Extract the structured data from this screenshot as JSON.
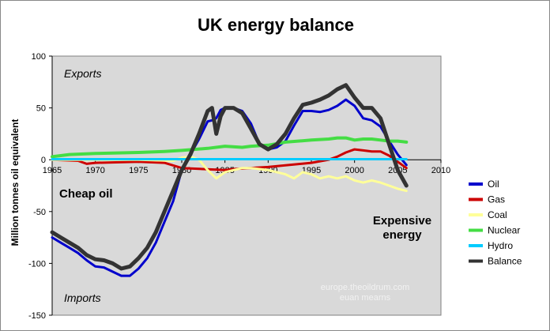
{
  "chart_data": {
    "type": "line",
    "title": "UK energy balance",
    "ylabel": "Million tonnes oil equivalent",
    "xlabel": "",
    "xlim": [
      1965,
      2010
    ],
    "ylim": [
      -150,
      100
    ],
    "x_ticks": [
      "1965",
      "1970",
      "1975",
      "1980",
      "1985",
      "1990",
      "1995",
      "2000",
      "2005",
      "2010"
    ],
    "y_ticks": [
      "100",
      "50",
      "0",
      "-50",
      "-100",
      "-150"
    ],
    "grid": false,
    "legend_position": "right",
    "series": [
      {
        "name": "Oil",
        "color": "#0000cc",
        "width": 3,
        "points": [
          [
            1965,
            -75
          ],
          [
            1966,
            -80
          ],
          [
            1967,
            -85
          ],
          [
            1968,
            -90
          ],
          [
            1969,
            -97
          ],
          [
            1970,
            -103
          ],
          [
            1971,
            -104
          ],
          [
            1972,
            -108
          ],
          [
            1973,
            -112
          ],
          [
            1974,
            -112
          ],
          [
            1975,
            -105
          ],
          [
            1976,
            -95
          ],
          [
            1977,
            -80
          ],
          [
            1978,
            -60
          ],
          [
            1979,
            -40
          ],
          [
            1980,
            -10
          ],
          [
            1981,
            5
          ],
          [
            1982,
            20
          ],
          [
            1983,
            37
          ],
          [
            1983.5,
            38
          ],
          [
            1984,
            40
          ],
          [
            1984.5,
            48
          ],
          [
            1985,
            50
          ],
          [
            1986,
            50
          ],
          [
            1987,
            47
          ],
          [
            1988,
            35
          ],
          [
            1989,
            15
          ],
          [
            1990,
            10
          ],
          [
            1991,
            12
          ],
          [
            1992,
            18
          ],
          [
            1993,
            33
          ],
          [
            1994,
            47
          ],
          [
            1995,
            47
          ],
          [
            1996,
            46
          ],
          [
            1997,
            48
          ],
          [
            1998,
            52
          ],
          [
            1999,
            58
          ],
          [
            2000,
            52
          ],
          [
            2001,
            40
          ],
          [
            2002,
            38
          ],
          [
            2003,
            32
          ],
          [
            2004,
            18
          ],
          [
            2005,
            5
          ],
          [
            2006,
            -5
          ]
        ]
      },
      {
        "name": "Gas",
        "color": "#cc0000",
        "width": 3,
        "points": [
          [
            1965,
            0
          ],
          [
            1968,
            -1
          ],
          [
            1969,
            -4
          ],
          [
            1970,
            -3
          ],
          [
            1975,
            -2
          ],
          [
            1978,
            -3
          ],
          [
            1980,
            -8
          ],
          [
            1985,
            -10
          ],
          [
            1986,
            -9
          ],
          [
            1990,
            -7
          ],
          [
            1995,
            -3
          ],
          [
            1997,
            0
          ],
          [
            1998,
            3
          ],
          [
            1999,
            7
          ],
          [
            2000,
            10
          ],
          [
            2001,
            9
          ],
          [
            2002,
            8
          ],
          [
            2003,
            8
          ],
          [
            2004,
            4
          ],
          [
            2005,
            -2
          ],
          [
            2006,
            -8
          ]
        ]
      },
      {
        "name": "Coal",
        "color": "#ffff99",
        "width": 3,
        "points": [
          [
            1965,
            0
          ],
          [
            1970,
            0
          ],
          [
            1975,
            0
          ],
          [
            1979,
            -1
          ],
          [
            1980,
            2
          ],
          [
            1981,
            3
          ],
          [
            1982,
            0
          ],
          [
            1983,
            -10
          ],
          [
            1984,
            -18
          ],
          [
            1985,
            -12
          ],
          [
            1986,
            -10
          ],
          [
            1987,
            -8
          ],
          [
            1988,
            -8
          ],
          [
            1989,
            -9
          ],
          [
            1990,
            -10
          ],
          [
            1991,
            -12
          ],
          [
            1992,
            -14
          ],
          [
            1993,
            -18
          ],
          [
            1994,
            -12
          ],
          [
            1995,
            -14
          ],
          [
            1996,
            -18
          ],
          [
            1997,
            -16
          ],
          [
            1998,
            -18
          ],
          [
            1999,
            -16
          ],
          [
            2000,
            -20
          ],
          [
            2001,
            -22
          ],
          [
            2002,
            -20
          ],
          [
            2003,
            -22
          ],
          [
            2004,
            -25
          ],
          [
            2005,
            -28
          ],
          [
            2006,
            -30
          ]
        ]
      },
      {
        "name": "Nuclear",
        "color": "#44dd44",
        "width": 4,
        "points": [
          [
            1965,
            3
          ],
          [
            1966,
            4
          ],
          [
            1967,
            5
          ],
          [
            1970,
            6
          ],
          [
            1975,
            7
          ],
          [
            1978,
            8
          ],
          [
            1980,
            9
          ],
          [
            1983,
            11
          ],
          [
            1985,
            13
          ],
          [
            1987,
            12
          ],
          [
            1988,
            13
          ],
          [
            1990,
            14
          ],
          [
            1992,
            17
          ],
          [
            1995,
            19
          ],
          [
            1997,
            20
          ],
          [
            1998,
            21
          ],
          [
            1999,
            21
          ],
          [
            2000,
            19
          ],
          [
            2001,
            20
          ],
          [
            2002,
            20
          ],
          [
            2003,
            19
          ],
          [
            2004,
            18
          ],
          [
            2005,
            18
          ],
          [
            2006,
            17
          ]
        ]
      },
      {
        "name": "Hydro",
        "color": "#00ccff",
        "width": 3,
        "points": [
          [
            1965,
            0.5
          ],
          [
            2006,
            0.5
          ]
        ]
      },
      {
        "name": "Balance",
        "color": "#333333",
        "width": 5,
        "points": [
          [
            1965,
            -70
          ],
          [
            1966,
            -75
          ],
          [
            1967,
            -80
          ],
          [
            1968,
            -85
          ],
          [
            1969,
            -92
          ],
          [
            1970,
            -96
          ],
          [
            1971,
            -97
          ],
          [
            1972,
            -100
          ],
          [
            1973,
            -105
          ],
          [
            1974,
            -103
          ],
          [
            1975,
            -95
          ],
          [
            1976,
            -85
          ],
          [
            1977,
            -70
          ],
          [
            1978,
            -50
          ],
          [
            1979,
            -30
          ],
          [
            1980,
            -10
          ],
          [
            1981,
            5
          ],
          [
            1982,
            25
          ],
          [
            1983,
            47
          ],
          [
            1983.5,
            50
          ],
          [
            1984,
            25
          ],
          [
            1984.5,
            42
          ],
          [
            1985,
            50
          ],
          [
            1986,
            50
          ],
          [
            1987,
            45
          ],
          [
            1988,
            30
          ],
          [
            1989,
            15
          ],
          [
            1990,
            10
          ],
          [
            1991,
            15
          ],
          [
            1992,
            25
          ],
          [
            1993,
            40
          ],
          [
            1994,
            53
          ],
          [
            1995,
            55
          ],
          [
            1996,
            58
          ],
          [
            1997,
            62
          ],
          [
            1998,
            68
          ],
          [
            1999,
            72
          ],
          [
            2000,
            60
          ],
          [
            2001,
            50
          ],
          [
            2002,
            50
          ],
          [
            2003,
            40
          ],
          [
            2004,
            15
          ],
          [
            2005,
            -10
          ],
          [
            2006,
            -25
          ]
        ]
      }
    ],
    "annotations": {
      "exports": "Exports",
      "imports": "Imports",
      "cheap_oil": "Cheap oil",
      "expensive_line1": "Expensive",
      "expensive_line2": "energy",
      "watermark_line1": "europe.theoildrum.com",
      "watermark_line2": "euan mearns"
    }
  },
  "colors": {
    "plot_bg": "#d9d9d9",
    "axis": "#000000"
  }
}
